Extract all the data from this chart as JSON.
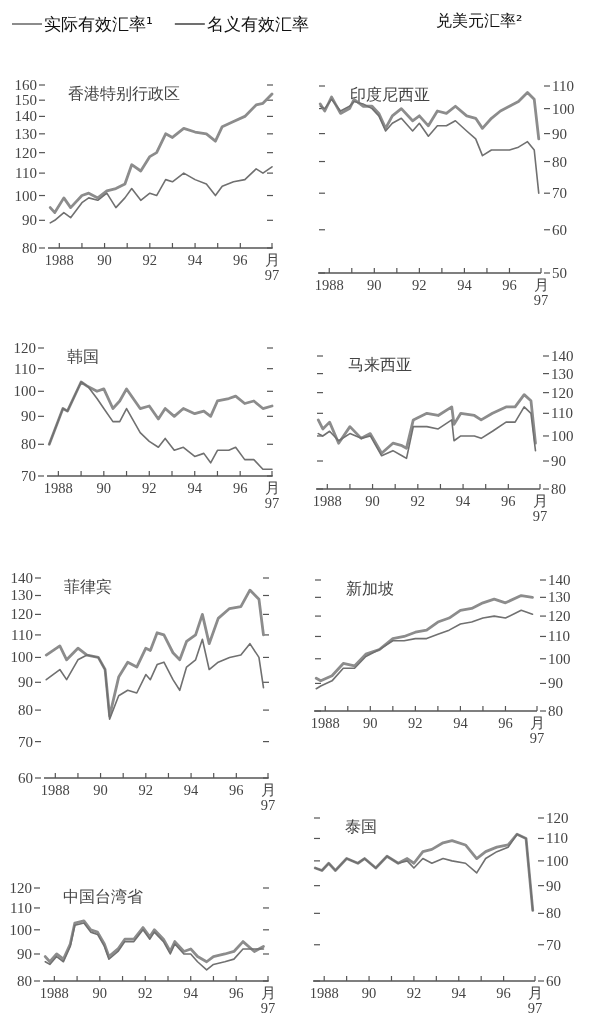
{
  "chart_data": [
    {
      "type": "line",
      "title": "香港特别行政区",
      "legend": "top",
      "annotations": [
        "兑美元汇率²"
      ],
      "log": true,
      "xlim": [
        1987.5,
        1997.4
      ],
      "xticks": [
        {
          "value": 1988,
          "label": "1988"
        },
        {
          "value": 1989,
          "label": null
        },
        {
          "value": 1990,
          "label": "90"
        },
        {
          "value": 1991,
          "label": null
        },
        {
          "value": 1992,
          "label": "92"
        },
        {
          "value": 1993,
          "label": null
        },
        {
          "value": 1994,
          "label": "94"
        },
        {
          "value": 1995,
          "label": null
        },
        {
          "value": 1996,
          "label": "96"
        },
        {
          "value": 1997.4,
          "label": "月\n97"
        }
      ],
      "ylim": [
        80,
        160
      ],
      "yticks": [
        80,
        90,
        100,
        110,
        120,
        130,
        140,
        150,
        160
      ],
      "x": [
        1987.6,
        1987.8,
        1988.2,
        1988.5,
        1989.0,
        1989.3,
        1989.7,
        1990.1,
        1990.5,
        1990.9,
        1991.2,
        1991.6,
        1992.0,
        1992.3,
        1992.7,
        1993.0,
        1993.5,
        1994.0,
        1994.5,
        1994.9,
        1995.2,
        1995.7,
        1996.2,
        1996.7,
        1997.0,
        1997.4
      ],
      "series": [
        {
          "name": "实际有效汇率¹",
          "color": "#8c8c8c",
          "values": [
            95,
            93,
            99,
            95,
            100,
            101,
            99,
            102,
            103,
            105,
            114,
            111,
            118,
            120,
            130,
            128,
            133,
            131,
            130,
            126,
            134,
            137,
            140,
            147,
            148,
            154
          ]
        },
        {
          "name": "名义有效汇率",
          "color": "#707070",
          "values": [
            89,
            90,
            93,
            91,
            97,
            99,
            98,
            101,
            95,
            99,
            103,
            98,
            101,
            100,
            107,
            106,
            110,
            107,
            105,
            100,
            104,
            106,
            107,
            112,
            110,
            113
          ]
        }
      ]
    },
    {
      "type": "line",
      "title": "印度尼西亚",
      "log": "y2",
      "xlim": [
        1987.5,
        1997.4
      ],
      "xticks": [
        {
          "value": 1988,
          "label": "1988"
        },
        {
          "value": 1989,
          "label": null
        },
        {
          "value": 1990,
          "label": "90"
        },
        {
          "value": 1991,
          "label": null
        },
        {
          "value": 1992,
          "label": "92"
        },
        {
          "value": 1993,
          "label": null
        },
        {
          "value": 1994,
          "label": "94"
        },
        {
          "value": 1995,
          "label": null
        },
        {
          "value": 1996,
          "label": "96"
        },
        {
          "value": 1997.4,
          "label": "月\n97"
        }
      ],
      "y2lim": [
        50,
        110
      ],
      "y2ticks": [
        50,
        60,
        70,
        80,
        90,
        100,
        110
      ],
      "x": [
        1987.6,
        1987.8,
        1988.1,
        1988.5,
        1988.9,
        1989.1,
        1989.5,
        1989.9,
        1990.2,
        1990.5,
        1990.8,
        1991.2,
        1991.7,
        1992.0,
        1992.4,
        1992.8,
        1993.2,
        1993.6,
        1994.1,
        1994.5,
        1994.8,
        1995.2,
        1995.6,
        1996.0,
        1996.4,
        1996.8,
        1997.1,
        1997.3
      ],
      "series": [
        {
          "color": "#8c8c8c",
          "axis": "y2",
          "values": [
            102,
            99,
            105,
            98,
            100,
            104,
            101,
            101,
            98,
            92,
            97,
            100,
            95,
            97,
            93,
            99,
            98,
            101,
            97,
            96,
            92,
            96,
            99,
            101,
            103,
            107,
            104,
            88
          ]
        },
        {
          "color": "#707070",
          "axis": "y2",
          "values": [
            101,
            100,
            104,
            99,
            101,
            103,
            102,
            100,
            97,
            91,
            94,
            96,
            91,
            94,
            89,
            93,
            93,
            95,
            91,
            88,
            82,
            84,
            84,
            84,
            85,
            87,
            84,
            70
          ]
        }
      ]
    },
    {
      "type": "line",
      "title": "韩国",
      "log": true,
      "xlim": [
        1987.5,
        1997.4
      ],
      "xticks": [
        {
          "value": 1988,
          "label": "1988"
        },
        {
          "value": 1989,
          "label": null
        },
        {
          "value": 1990,
          "label": "90"
        },
        {
          "value": 1991,
          "label": null
        },
        {
          "value": 1992,
          "label": "92"
        },
        {
          "value": 1993,
          "label": null
        },
        {
          "value": 1994,
          "label": "94"
        },
        {
          "value": 1995,
          "label": null
        },
        {
          "value": 1996,
          "label": "96"
        },
        {
          "value": 1997.4,
          "label": "月\n97"
        }
      ],
      "ylim": [
        70,
        120
      ],
      "yticks": [
        70,
        80,
        90,
        100,
        110,
        120
      ],
      "x": [
        1987.6,
        1988.2,
        1988.4,
        1989.0,
        1989.3,
        1989.7,
        1990.0,
        1990.4,
        1990.7,
        1991.0,
        1991.6,
        1992.0,
        1992.4,
        1992.7,
        1993.1,
        1993.5,
        1994.0,
        1994.4,
        1994.7,
        1995.0,
        1995.5,
        1995.8,
        1996.2,
        1996.6,
        1997.0,
        1997.4
      ],
      "series": [
        {
          "color": "#8c8c8c",
          "values": [
            80,
            93,
            92,
            104,
            102,
            100,
            101,
            93,
            96,
            101,
            93,
            94,
            89,
            93,
            90,
            93,
            91,
            92,
            90,
            96,
            97,
            98,
            95,
            96,
            93,
            94
          ]
        },
        {
          "color": "#707070",
          "values": [
            80,
            93,
            92,
            104,
            102,
            97,
            93,
            88,
            88,
            93,
            84,
            81,
            79,
            82,
            78,
            79,
            76,
            77,
            74,
            78,
            78,
            79,
            75,
            75,
            72,
            72
          ]
        }
      ]
    },
    {
      "type": "line",
      "title": "马来西亚",
      "log": "y2",
      "xlim": [
        1987.5,
        1997.4
      ],
      "xticks": [
        {
          "value": 1988,
          "label": "1988"
        },
        {
          "value": 1989,
          "label": null
        },
        {
          "value": 1990,
          "label": "90"
        },
        {
          "value": 1991,
          "label": null
        },
        {
          "value": 1992,
          "label": "92"
        },
        {
          "value": 1993,
          "label": null
        },
        {
          "value": 1994,
          "label": "94"
        },
        {
          "value": 1995,
          "label": null
        },
        {
          "value": 1996,
          "label": "96"
        },
        {
          "value": 1997.4,
          "label": "月\n97"
        }
      ],
      "y2lim": [
        80,
        140
      ],
      "y2ticks": [
        80,
        90,
        100,
        110,
        120,
        130,
        140
      ],
      "x": [
        1987.6,
        1987.8,
        1988.1,
        1988.5,
        1989.0,
        1989.5,
        1989.9,
        1990.4,
        1990.9,
        1991.3,
        1991.5,
        1991.8,
        1992.4,
        1992.9,
        1993.5,
        1993.6,
        1993.9,
        1994.5,
        1994.8,
        1995.3,
        1995.9,
        1996.3,
        1996.7,
        1997.0,
        1997.2
      ],
      "series": [
        {
          "color": "#8c8c8c",
          "axis": "y2",
          "values": [
            107,
            103,
            106,
            97,
            104,
            99,
            101,
            93,
            97,
            96,
            95,
            107,
            110,
            109,
            113,
            105,
            110,
            109,
            107,
            110,
            113,
            113,
            119,
            116,
            97
          ]
        },
        {
          "color": "#707070",
          "axis": "y2",
          "values": [
            101,
            100,
            102,
            98,
            101,
            99,
            100,
            92,
            94,
            92,
            91,
            104,
            104,
            103,
            107,
            98,
            100,
            100,
            99,
            102,
            106,
            106,
            113,
            110,
            94
          ]
        }
      ]
    },
    {
      "type": "line",
      "title": "菲律宾",
      "log": true,
      "xlim": [
        1987.5,
        1997.4
      ],
      "xticks": [
        {
          "value": 1988,
          "label": "1988"
        },
        {
          "value": 1989,
          "label": null
        },
        {
          "value": 1990,
          "label": "90"
        },
        {
          "value": 1991,
          "label": null
        },
        {
          "value": 1992,
          "label": "92"
        },
        {
          "value": 1993,
          "label": null
        },
        {
          "value": 1994,
          "label": "94"
        },
        {
          "value": 1995,
          "label": null
        },
        {
          "value": 1996,
          "label": "96"
        },
        {
          "value": 1997.4,
          "label": "月\n97"
        }
      ],
      "ylim": [
        60,
        140
      ],
      "yticks": [
        60,
        70,
        80,
        90,
        100,
        110,
        120,
        130,
        140
      ],
      "x": [
        1987.6,
        1988.2,
        1988.5,
        1989.0,
        1989.4,
        1989.9,
        1990.2,
        1990.4,
        1990.8,
        1991.2,
        1991.6,
        1992.0,
        1992.2,
        1992.5,
        1992.8,
        1993.2,
        1993.5,
        1993.8,
        1994.2,
        1994.5,
        1994.8,
        1995.2,
        1995.7,
        1996.2,
        1996.6,
        1997.0,
        1997.2
      ],
      "series": [
        {
          "color": "#8c8c8c",
          "values": [
            101,
            105,
            99,
            104,
            101,
            100,
            95,
            78,
            92,
            98,
            96,
            104,
            103,
            111,
            110,
            102,
            99,
            107,
            110,
            120,
            106,
            118,
            123,
            124,
            133,
            128,
            110
          ]
        },
        {
          "color": "#707070",
          "values": [
            91,
            95,
            91,
            99,
            101,
            100,
            95,
            77,
            85,
            87,
            86,
            93,
            91,
            97,
            98,
            91,
            87,
            96,
            99,
            108,
            95,
            98,
            100,
            101,
            106,
            100,
            88
          ]
        }
      ]
    },
    {
      "type": "line",
      "title": "新加坡",
      "log": "y2",
      "xlim": [
        1987.5,
        1997.4
      ],
      "xticks": [
        {
          "value": 1988,
          "label": "1988"
        },
        {
          "value": 1989,
          "label": null
        },
        {
          "value": 1990,
          "label": "90"
        },
        {
          "value": 1991,
          "label": null
        },
        {
          "value": 1992,
          "label": "92"
        },
        {
          "value": 1993,
          "label": null
        },
        {
          "value": 1994,
          "label": "94"
        },
        {
          "value": 1995,
          "label": null
        },
        {
          "value": 1996,
          "label": "96"
        },
        {
          "value": 1997.4,
          "label": "月\n97"
        }
      ],
      "y2lim": [
        80,
        140
      ],
      "y2ticks": [
        80,
        90,
        100,
        110,
        120,
        130,
        140
      ],
      "x": [
        1987.6,
        1987.8,
        1988.3,
        1988.8,
        1989.3,
        1989.8,
        1990.4,
        1991.0,
        1991.5,
        1992.0,
        1992.5,
        1993.0,
        1993.5,
        1994.0,
        1994.5,
        1995.0,
        1995.5,
        1996.0,
        1996.7,
        1997.2
      ],
      "series": [
        {
          "color": "#8c8c8c",
          "axis": "y2",
          "values": [
            92,
            91,
            93,
            98,
            97,
            102,
            104,
            109,
            110,
            112,
            113,
            117,
            119,
            123,
            124,
            127,
            129,
            127,
            131,
            130
          ]
        },
        {
          "color": "#707070",
          "axis": "y2",
          "values": [
            88,
            89,
            91,
            96,
            96,
            101,
            104,
            108,
            108,
            109,
            109,
            111,
            113,
            116,
            117,
            119,
            120,
            119,
            123,
            121
          ]
        }
      ]
    },
    {
      "type": "line",
      "title": "中国台湾省",
      "log": true,
      "xlim": [
        1987.5,
        1997.4
      ],
      "xticks": [
        {
          "value": 1988,
          "label": "1988"
        },
        {
          "value": 1989,
          "label": null
        },
        {
          "value": 1990,
          "label": "90"
        },
        {
          "value": 1991,
          "label": null
        },
        {
          "value": 1992,
          "label": "92"
        },
        {
          "value": 1993,
          "label": null
        },
        {
          "value": 1994,
          "label": "94"
        },
        {
          "value": 1995,
          "label": null
        },
        {
          "value": 1996,
          "label": "96"
        },
        {
          "value": 1997.4,
          "label": "月\n97"
        }
      ],
      "ylim": [
        80,
        120
      ],
      "yticks": [
        80,
        90,
        100,
        110,
        120
      ],
      "x": [
        1987.6,
        1987.8,
        1988.1,
        1988.4,
        1988.7,
        1988.9,
        1989.3,
        1989.6,
        1989.9,
        1990.2,
        1990.4,
        1990.8,
        1991.1,
        1991.5,
        1991.9,
        1992.2,
        1992.4,
        1992.8,
        1993.1,
        1993.3,
        1993.7,
        1994.0,
        1994.3,
        1994.7,
        1995.0,
        1995.5,
        1995.9,
        1996.3,
        1996.8,
        1997.2
      ],
      "series": [
        {
          "color": "#8c8c8c",
          "values": [
            89,
            87,
            90,
            88,
            94,
            103,
            104,
            100,
            99,
            94,
            89,
            92,
            96,
            96,
            101,
            97,
            100,
            96,
            91,
            95,
            91,
            92,
            89,
            87,
            89,
            90,
            91,
            95,
            91,
            93
          ]
        },
        {
          "color": "#707070",
          "values": [
            87,
            86,
            89,
            87,
            93,
            102,
            103,
            99,
            98,
            93,
            88,
            91,
            95,
            95,
            100,
            96,
            99,
            95,
            90,
            94,
            90,
            90,
            87,
            84,
            86,
            87,
            88,
            92,
            92,
            92
          ]
        }
      ]
    },
    {
      "type": "line",
      "title": "泰国",
      "log": "y2",
      "xlim": [
        1987.5,
        1997.4
      ],
      "xticks": [
        {
          "value": 1988,
          "label": "1988"
        },
        {
          "value": 1989,
          "label": null
        },
        {
          "value": 1990,
          "label": "90"
        },
        {
          "value": 1991,
          "label": null
        },
        {
          "value": 1992,
          "label": "92"
        },
        {
          "value": 1993,
          "label": null
        },
        {
          "value": 1994,
          "label": "94"
        },
        {
          "value": 1995,
          "label": null
        },
        {
          "value": 1996,
          "label": "96"
        },
        {
          "value": 1997.4,
          "label": "月\n97"
        }
      ],
      "y2lim": [
        60,
        120
      ],
      "y2ticks": [
        60,
        70,
        80,
        90,
        100,
        110,
        120
      ],
      "x": [
        1987.6,
        1987.9,
        1988.2,
        1988.5,
        1989.0,
        1989.5,
        1989.8,
        1990.3,
        1990.8,
        1991.3,
        1991.7,
        1992.0,
        1992.4,
        1992.8,
        1993.3,
        1993.7,
        1994.3,
        1994.8,
        1995.2,
        1995.7,
        1996.2,
        1996.6,
        1997.0,
        1997.3
      ],
      "series": [
        {
          "color": "#8c8c8c",
          "axis": "y2",
          "values": [
            97,
            96,
            99,
            96,
            101,
            99,
            101,
            97,
            102,
            99,
            101,
            99,
            104,
            105,
            108,
            109,
            107,
            101,
            104,
            106,
            107,
            112,
            110,
            81
          ]
        },
        {
          "color": "#707070",
          "axis": "y2",
          "values": [
            97,
            96,
            99,
            96,
            101,
            99,
            101,
            97,
            102,
            99,
            100,
            97,
            101,
            99,
            101,
            100,
            99,
            95,
            101,
            104,
            106,
            112,
            110,
            81
          ]
        }
      ]
    }
  ]
}
